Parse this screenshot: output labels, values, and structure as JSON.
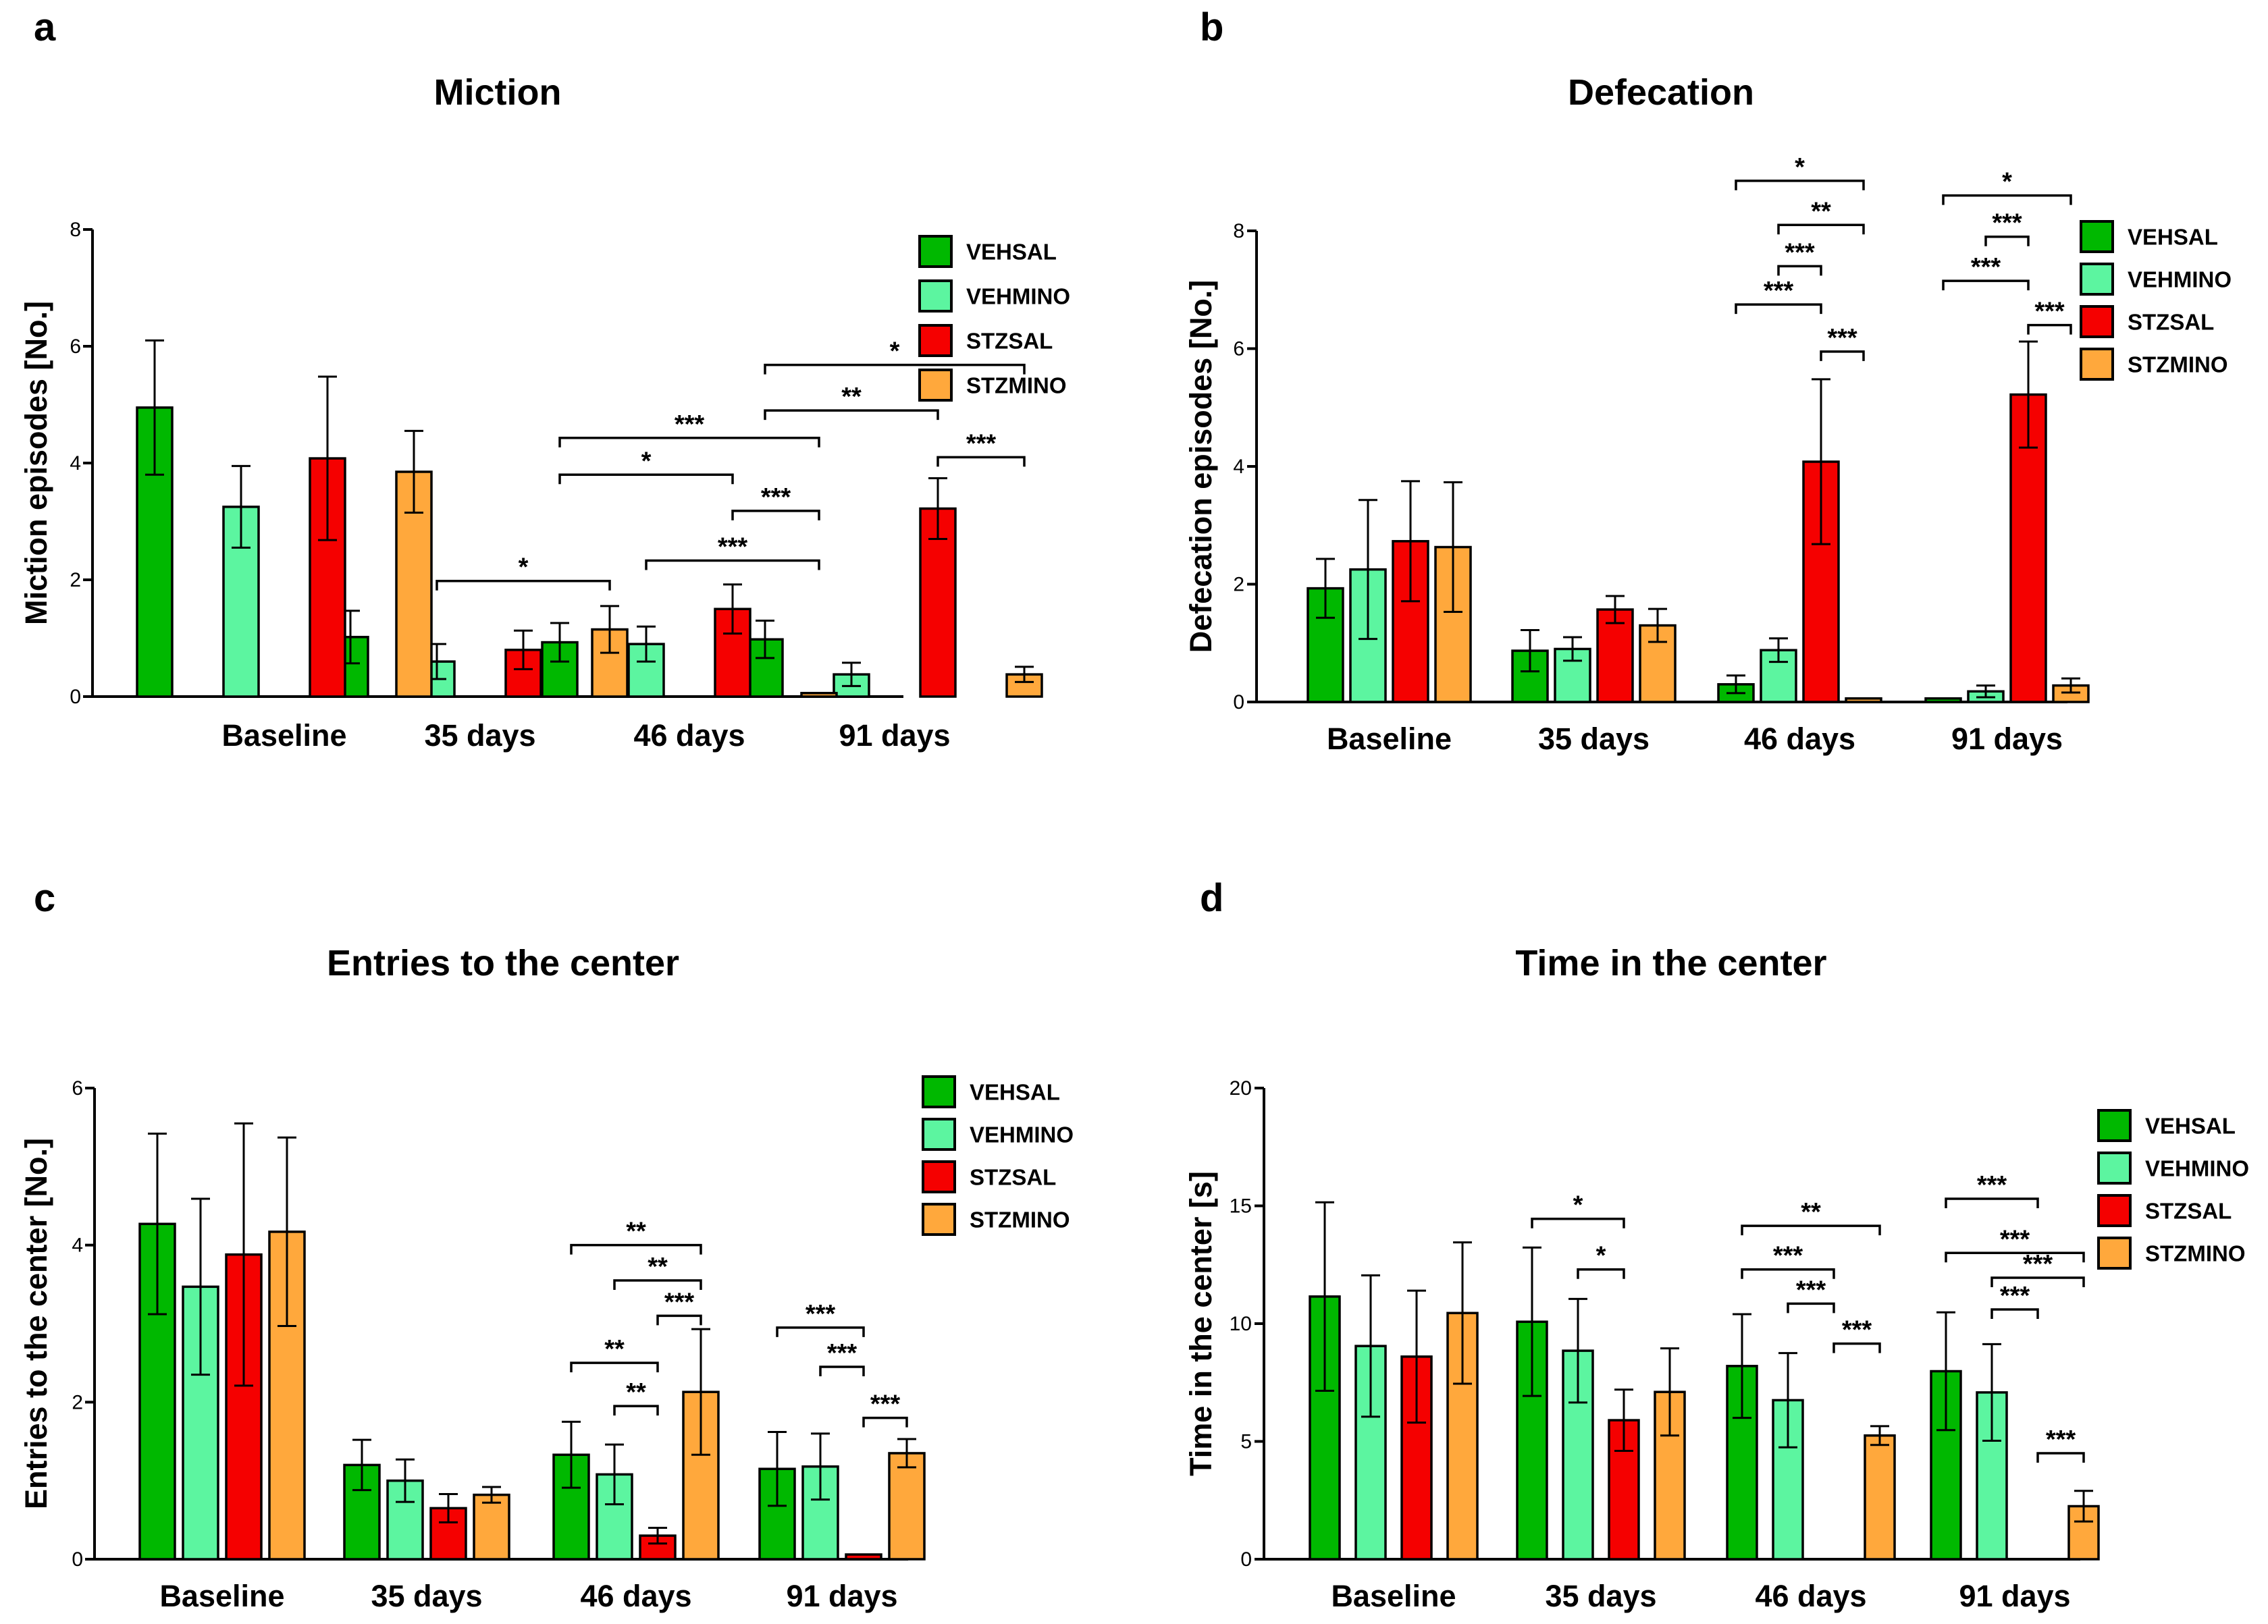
{
  "colors": {
    "VEHSAL": "#00b800",
    "VEHMINO": "#5cf5a0",
    "STZSAL": "#f50000",
    "STZMINO": "#ffa83c",
    "axis": "#000000"
  },
  "legend": [
    "VEHSAL",
    "VEHMINO",
    "STZSAL",
    "STZMINO"
  ],
  "chart_data": [
    {
      "type": "bar",
      "panel": "a",
      "title": "Miction",
      "xlabel": "",
      "ylabel": "Miction episodes [No.]",
      "ylim": [
        0,
        8
      ],
      "yticks": [
        "0",
        "2",
        "4",
        "6",
        "8"
      ],
      "categories": [
        "Baseline",
        "35 days",
        "46 days",
        "91 days"
      ],
      "series": [
        {
          "name": "VEHSAL",
          "values": [
            4.95,
            1.02,
            0.93,
            0.98
          ],
          "errors": [
            1.15,
            0.45,
            0.33,
            0.32
          ]
        },
        {
          "name": "VEHMINO",
          "values": [
            3.25,
            0.6,
            0.9,
            0.38
          ],
          "errors": [
            0.7,
            0.3,
            0.3,
            0.2
          ]
        },
        {
          "name": "STZSAL",
          "values": [
            4.08,
            0.8,
            1.5,
            3.22
          ],
          "errors": [
            1.4,
            0.33,
            0.42,
            0.52
          ]
        },
        {
          "name": "STZMINO",
          "values": [
            3.85,
            1.15,
            0.06,
            0.38
          ],
          "errors": [
            0.7,
            0.4,
            0.0,
            0.13
          ]
        }
      ],
      "significance": [
        {
          "label": "*",
          "group": 1,
          "from": 1,
          "to": 3,
          "y": 1.98
        },
        {
          "label": "***",
          "group": 2,
          "from": 0,
          "to": 3,
          "y": 4.43
        },
        {
          "label": "*",
          "group": 2,
          "from": 0,
          "to": 2,
          "y": 3.8
        },
        {
          "label": "***",
          "group": 2,
          "from": 2,
          "to": 3,
          "y": 3.18
        },
        {
          "label": "***",
          "group": 2,
          "from": 1,
          "to": 3,
          "y": 2.33
        },
        {
          "label": "*",
          "group": 3,
          "from": 0,
          "to": 3,
          "y": 5.68
        },
        {
          "label": "**",
          "group": 3,
          "from": 0,
          "to": 2,
          "y": 4.9
        },
        {
          "label": "***",
          "group": 3,
          "from": 2,
          "to": 3,
          "y": 4.1
        }
      ]
    },
    {
      "type": "bar",
      "panel": "b",
      "title": "Defecation",
      "xlabel": "",
      "ylabel": "Defecation episodes [No.]",
      "ylim": [
        0,
        8
      ],
      "yticks": [
        "0",
        "2",
        "4",
        "6",
        "8"
      ],
      "categories": [
        "Baseline",
        "35 days",
        "46 days",
        "91 days"
      ],
      "series": [
        {
          "name": "VEHSAL",
          "values": [
            1.93,
            0.87,
            0.3,
            0.06
          ],
          "errors": [
            0.5,
            0.35,
            0.15,
            0.0
          ]
        },
        {
          "name": "VEHMINO",
          "values": [
            2.25,
            0.9,
            0.88,
            0.18
          ],
          "errors": [
            1.18,
            0.2,
            0.2,
            0.1
          ]
        },
        {
          "name": "STZSAL",
          "values": [
            2.73,
            1.57,
            4.08,
            5.22
          ],
          "errors": [
            1.02,
            0.23,
            1.4,
            0.9
          ]
        },
        {
          "name": "STZMINO",
          "values": [
            2.63,
            1.3,
            0.06,
            0.28
          ],
          "errors": [
            1.1,
            0.28,
            0.0,
            0.12
          ]
        }
      ],
      "significance": [
        {
          "label": "*",
          "group": 2,
          "from": 0,
          "to": 3,
          "y": 8.85
        },
        {
          "label": "**",
          "group": 2,
          "from": 1,
          "to": 3,
          "y": 8.1
        },
        {
          "label": "***",
          "group": 2,
          "from": 1,
          "to": 2,
          "y": 7.4
        },
        {
          "label": "***",
          "group": 2,
          "from": 0,
          "to": 2,
          "y": 6.75
        },
        {
          "label": "***",
          "group": 2,
          "from": 2,
          "to": 3,
          "y": 5.95
        },
        {
          "label": "*",
          "group": 3,
          "from": 0,
          "to": 3,
          "y": 8.6
        },
        {
          "label": "***",
          "group": 3,
          "from": 1,
          "to": 2,
          "y": 7.9
        },
        {
          "label": "***",
          "group": 3,
          "from": 0,
          "to": 2,
          "y": 7.15
        },
        {
          "label": "***",
          "group": 3,
          "from": 2,
          "to": 3,
          "y": 6.4
        }
      ]
    },
    {
      "type": "bar",
      "panel": "c",
      "title": "Entries to the center",
      "xlabel": "",
      "ylabel": "Entries to the center [No.]",
      "ylim": [
        0,
        6
      ],
      "yticks": [
        "0",
        "2",
        "4",
        "6"
      ],
      "categories": [
        "Baseline",
        "35 days",
        "46 days",
        "91 days"
      ],
      "series": [
        {
          "name": "VEHSAL",
          "values": [
            4.27,
            1.2,
            1.33,
            1.15
          ],
          "errors": [
            1.15,
            0.32,
            0.42,
            0.47
          ]
        },
        {
          "name": "VEHMINO",
          "values": [
            3.47,
            1.0,
            1.08,
            1.18
          ],
          "errors": [
            1.12,
            0.27,
            0.38,
            0.42
          ]
        },
        {
          "name": "STZSAL",
          "values": [
            3.88,
            0.65,
            0.3,
            0.06
          ],
          "errors": [
            1.67,
            0.18,
            0.1,
            0.0
          ]
        },
        {
          "name": "STZMINO",
          "values": [
            4.17,
            0.82,
            2.13,
            1.35
          ],
          "errors": [
            1.2,
            0.1,
            0.8,
            0.18
          ]
        }
      ],
      "significance": [
        {
          "label": "**",
          "group": 2,
          "from": 0,
          "to": 3,
          "y": 4.0
        },
        {
          "label": "**",
          "group": 2,
          "from": 1,
          "to": 3,
          "y": 3.55
        },
        {
          "label": "***",
          "group": 2,
          "from": 2,
          "to": 3,
          "y": 3.1
        },
        {
          "label": "**",
          "group": 2,
          "from": 0,
          "to": 2,
          "y": 2.5
        },
        {
          "label": "**",
          "group": 2,
          "from": 1,
          "to": 2,
          "y": 1.95
        },
        {
          "label": "***",
          "group": 3,
          "from": 0,
          "to": 2,
          "y": 2.95
        },
        {
          "label": "***",
          "group": 3,
          "from": 1,
          "to": 2,
          "y": 2.45
        },
        {
          "label": "***",
          "group": 3,
          "from": 2,
          "to": 3,
          "y": 1.8
        }
      ]
    },
    {
      "type": "bar",
      "panel": "d",
      "title": "Time in the center",
      "xlabel": "",
      "ylabel": "Time in the center [s]",
      "ylim": [
        0,
        20
      ],
      "yticks": [
        "0",
        "5",
        "10",
        "15",
        "20"
      ],
      "categories": [
        "Baseline",
        "35 days",
        "46 days",
        "91 days"
      ],
      "series": [
        {
          "name": "VEHSAL",
          "values": [
            11.15,
            10.08,
            8.2,
            7.98
          ],
          "errors": [
            4.0,
            3.15,
            2.2,
            2.5
          ]
        },
        {
          "name": "VEHMINO",
          "values": [
            9.05,
            8.85,
            6.75,
            7.08
          ],
          "errors": [
            3.0,
            2.2,
            2.0,
            2.05
          ]
        },
        {
          "name": "STZSAL",
          "values": [
            8.6,
            5.9,
            0.0,
            0.0
          ],
          "errors": [
            2.8,
            1.3,
            0.0,
            0.0
          ]
        },
        {
          "name": "STZMINO",
          "values": [
            10.45,
            7.1,
            5.25,
            2.25
          ],
          "errors": [
            3.0,
            1.85,
            0.4,
            0.65
          ]
        }
      ],
      "significance": [
        {
          "label": "*",
          "group": 1,
          "from": 0,
          "to": 2,
          "y": 14.45
        },
        {
          "label": "*",
          "group": 1,
          "from": 1,
          "to": 2,
          "y": 12.3
        },
        {
          "label": "**",
          "group": 2,
          "from": 0,
          "to": 3,
          "y": 14.15
        },
        {
          "label": "***",
          "group": 2,
          "from": 0,
          "to": 2,
          "y": 12.3
        },
        {
          "label": "***",
          "group": 2,
          "from": 1,
          "to": 2,
          "y": 10.85
        },
        {
          "label": "***",
          "group": 2,
          "from": 2,
          "to": 3,
          "y": 9.15
        },
        {
          "label": "***",
          "group": 3,
          "from": 0,
          "to": 2,
          "y": 15.3
        },
        {
          "label": "***",
          "group": 3,
          "from": 0,
          "to": 3,
          "y": 13.0
        },
        {
          "label": "***",
          "group": 3,
          "from": 1,
          "to": 3,
          "y": 11.95
        },
        {
          "label": "***",
          "group": 3,
          "from": 1,
          "to": 2,
          "y": 10.6
        },
        {
          "label": "***",
          "group": 3,
          "from": 2,
          "to": 3,
          "y": 4.5
        }
      ]
    }
  ]
}
